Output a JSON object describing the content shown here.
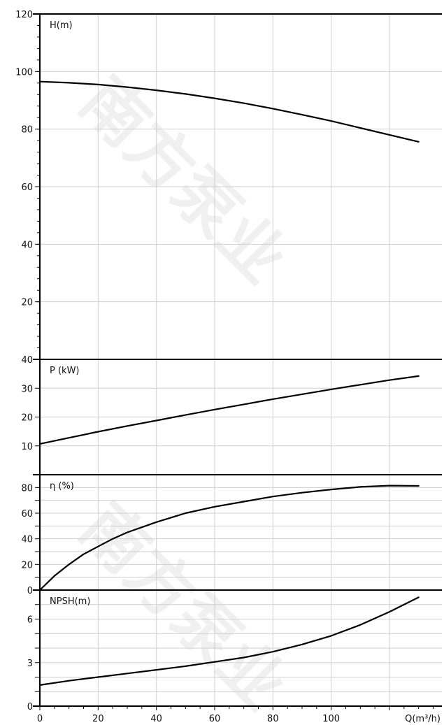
{
  "watermark": "南方泵业",
  "chart_data": {
    "type": "line",
    "x_axis": {
      "label": "Q(m³/h)",
      "ticks": [
        "0",
        "20",
        "40",
        "60",
        "80",
        "100"
      ],
      "range": [
        0,
        138
      ]
    },
    "panels": [
      {
        "id": "head",
        "label": "H(m)",
        "ylim": [
          0,
          120
        ],
        "yticks": [
          0,
          20,
          40,
          60,
          80,
          100,
          120
        ],
        "ytick_labels": [
          "",
          "20",
          "40",
          "60",
          "80",
          "100",
          "120"
        ],
        "series": [
          {
            "x": [
              0,
              10,
              20,
              30,
              40,
              50,
              60,
              70,
              80,
              90,
              100,
              110,
              120,
              130
            ],
            "y": [
              96.5,
              96.1,
              95.5,
              94.6,
              93.5,
              92.2,
              90.7,
              89.0,
              87.1,
              85.0,
              82.8,
              80.4,
              78.0,
              75.6
            ]
          }
        ]
      },
      {
        "id": "power",
        "label": "P (kW)",
        "ylim": [
          0,
          40
        ],
        "yticks": [
          0,
          10,
          20,
          30,
          40
        ],
        "ytick_labels": [
          "",
          "10",
          "20",
          "30",
          "40"
        ],
        "series": [
          {
            "x": [
              0,
              10,
              20,
              30,
              40,
              50,
              60,
              70,
              80,
              90,
              100,
              110,
              120,
              130
            ],
            "y": [
              10.7,
              12.8,
              14.9,
              16.9,
              18.8,
              20.7,
              22.6,
              24.4,
              26.2,
              27.9,
              29.6,
              31.2,
              32.8,
              34.2
            ]
          }
        ]
      },
      {
        "id": "efficiency",
        "label": "η (%)",
        "ylim": [
          0,
          90
        ],
        "yticks": [
          0,
          10,
          20,
          30,
          40,
          50,
          60,
          70,
          80
        ],
        "ytick_labels": [
          "0",
          "",
          "20",
          "",
          "40",
          "",
          "60",
          "",
          "80"
        ],
        "series": [
          {
            "x": [
              0,
              5,
              10,
              15,
              20,
              25,
              30,
              40,
              50,
              60,
              70,
              80,
              90,
              100,
              110,
              120,
              130
            ],
            "y": [
              0,
              11,
              20,
              28,
              34,
              40,
              45,
              53,
              60,
              65,
              69,
              73,
              76,
              78.5,
              80.5,
              81.5,
              81.3
            ]
          }
        ]
      },
      {
        "id": "npsh",
        "label": "NPSH(m)",
        "ylim": [
          0,
          8
        ],
        "yticks": [
          0,
          1,
          2,
          3,
          4,
          5,
          6,
          7
        ],
        "ytick_labels": [
          "0",
          "",
          "",
          "3",
          "",
          "",
          "6",
          ""
        ],
        "series": [
          {
            "x": [
              0,
              10,
              20,
              30,
              40,
              50,
              60,
              70,
              80,
              90,
              100,
              110,
              120,
              130
            ],
            "y": [
              1.45,
              1.75,
              2.0,
              2.25,
              2.5,
              2.75,
              3.05,
              3.35,
              3.75,
              4.25,
              4.85,
              5.6,
              6.5,
              7.5
            ]
          }
        ]
      }
    ],
    "grid": true
  }
}
